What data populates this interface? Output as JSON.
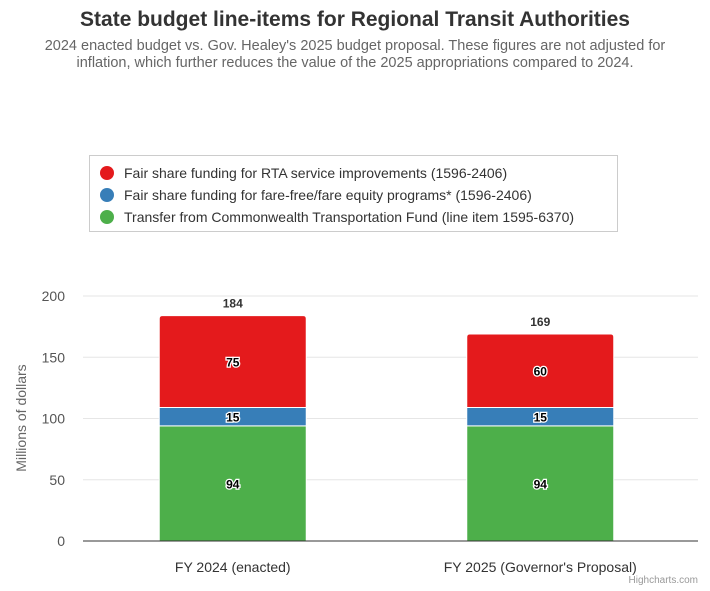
{
  "chart_data": {
    "type": "bar",
    "stacked": true,
    "title": "State budget line-items for Regional Transit Authorities",
    "subtitle": "2024 enacted budget vs. Gov. Healey's 2025 budget proposal. These figures are not adjusted for inflation, which further reduces the value of the 2025 appropriations compared to 2024.",
    "categories": [
      "FY 2024 (enacted)",
      "FY 2025 (Governor's Proposal)"
    ],
    "series": [
      {
        "name": "Fair share funding for RTA service improvements (1596-2406)",
        "color": "#e41a1c",
        "values": [
          75,
          60
        ]
      },
      {
        "name": "Fair share funding for fare-free/fare equity programs* (1596-2406)",
        "color": "#377eb8",
        "values": [
          15,
          15
        ]
      },
      {
        "name": "Transfer from Commonwealth Transportation Fund (line item 1595-6370)",
        "color": "#4daf4a",
        "values": [
          94,
          94
        ]
      }
    ],
    "totals": [
      184,
      169
    ],
    "xlabel": "",
    "ylabel": "Millions of dollars",
    "ylim": [
      0,
      200
    ],
    "yticks": [
      0,
      50,
      100,
      150,
      200
    ],
    "grid": true,
    "legend_position": "top"
  },
  "credits": "Highcharts.com"
}
